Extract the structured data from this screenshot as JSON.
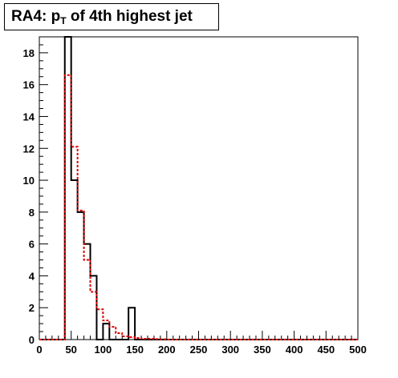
{
  "title": {
    "main": "RA4: p",
    "subscript": "T",
    "rest": " of 4th highest jet"
  },
  "chart_data": {
    "type": "histogram",
    "title": "RA4: p_T of 4th highest jet",
    "xlabel": "",
    "ylabel": "",
    "xlim": [
      0,
      500
    ],
    "ylim": [
      0,
      19
    ],
    "grid": false,
    "legend": "none",
    "bin_width": 10,
    "bin_edges_start": 0,
    "x_ticks": [
      0,
      50,
      100,
      150,
      200,
      250,
      300,
      350,
      400,
      450,
      500
    ],
    "y_ticks": [
      0,
      2,
      4,
      6,
      8,
      10,
      12,
      14,
      16,
      18
    ],
    "series": [
      {
        "style": "solid",
        "color": "#000000",
        "values": [
          0,
          0,
          0,
          0,
          19,
          10,
          8,
          6,
          4,
          0,
          1,
          0,
          0,
          0,
          2,
          0,
          0,
          0,
          0,
          0,
          0,
          0,
          0,
          0,
          0,
          0,
          0,
          0,
          0,
          0,
          0,
          0,
          0,
          0,
          0,
          0,
          0,
          0,
          0,
          0,
          0,
          0,
          0,
          0,
          0,
          0,
          0,
          0,
          0,
          0
        ]
      },
      {
        "style": "dotted",
        "color": "#dd0000",
        "values": [
          0,
          0,
          0,
          0,
          16.6,
          12.1,
          8.1,
          5.0,
          3.0,
          1.9,
          1.2,
          0.8,
          0.4,
          0.2,
          0.15,
          0.1,
          0.05,
          0.05,
          0.03,
          0.02,
          0,
          0,
          0,
          0,
          0,
          0,
          0,
          0,
          0,
          0,
          0,
          0,
          0,
          0,
          0,
          0,
          0,
          0,
          0,
          0,
          0,
          0,
          0,
          0,
          0,
          0,
          0,
          0,
          0,
          0
        ]
      }
    ]
  }
}
